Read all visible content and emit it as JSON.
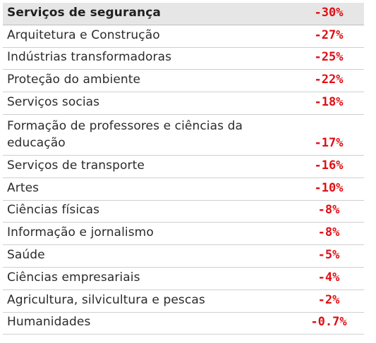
{
  "rows": [
    {
      "label": "Serviços de segurança",
      "value": "-30%"
    },
    {
      "label": "Arquitetura e Construção",
      "value": "-27%"
    },
    {
      "label": "Indústrias transformadoras",
      "value": "-25%"
    },
    {
      "label": "Proteção do ambiente",
      "value": "-22%"
    },
    {
      "label": "Serviços socias",
      "value": "-18%"
    },
    {
      "label": "Formação de professores e ciências da educação",
      "value": "-17%"
    },
    {
      "label": "Serviços de transporte",
      "value": "-16%"
    },
    {
      "label": "Artes",
      "value": "-10%"
    },
    {
      "label": "Ciências físicas",
      "value": "-8%"
    },
    {
      "label": "Informação e jornalismo",
      "value": "-8%"
    },
    {
      "label": "Saúde",
      "value": "-5%"
    },
    {
      "label": "Ciências empresariais",
      "value": "-4%"
    },
    {
      "label": "Agricultura, silvicultura e pescas",
      "value": "-2%"
    },
    {
      "label": "Humanidades",
      "value": "-0.7%"
    }
  ],
  "colors": {
    "value_text": "#e00e14",
    "header_bg": "#e6e6e6",
    "row_border": "#cfcfcf"
  }
}
